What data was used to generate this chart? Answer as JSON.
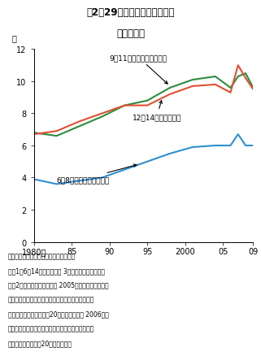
{
  "title_line1": "図2－29　肥満傾向の子どもの",
  "title_line2": "割合の推移",
  "title_bg_color": "#f2c0c0",
  "ylabel": "％",
  "ylim": [
    0,
    12
  ],
  "yticks": [
    0,
    2,
    4,
    6,
    8,
    10,
    12
  ],
  "xlim": [
    1980,
    2009
  ],
  "xticks": [
    1980,
    1985,
    1990,
    1995,
    2000,
    2005,
    2009
  ],
  "xticklabels": [
    "1980年",
    "85",
    "90",
    "95",
    "2000",
    "05",
    "09"
  ],
  "years": [
    1980,
    1983,
    1986,
    1989,
    1992,
    1995,
    1998,
    2001,
    2004,
    2006,
    2007,
    2008,
    2009
  ],
  "series_green": [
    6.8,
    6.6,
    7.2,
    7.8,
    8.5,
    8.8,
    9.6,
    10.1,
    10.3,
    9.6,
    10.3,
    10.5,
    9.6
  ],
  "series_orange": [
    6.7,
    6.9,
    7.5,
    8.0,
    8.5,
    8.5,
    9.2,
    9.7,
    9.8,
    9.3,
    11.0,
    10.2,
    9.5
  ],
  "series_blue": [
    3.9,
    3.6,
    3.8,
    4.0,
    4.5,
    5.0,
    5.5,
    5.9,
    6.0,
    6.0,
    6.7,
    6.0,
    6.0
  ],
  "color_green": "#2e8b3e",
  "color_orange": "#e05030",
  "color_blue": "#3090d0",
  "lw": 1.5,
  "label_9_11": "9～11歳（小学校高学年）",
  "label_12_14": "12～14歳（中学校）",
  "label_6_8": "6～8歳（小学校低学年）",
  "note_source": "資料：文部科学省「学校保健統計調査」",
  "note1": "注：1）6～14歳について、 3歳ごとに平均値を算出",
  "note2": "　　2）肥満傾向の基準は、 2005年までは性別・年齢",
  "note3": "　　　別に身長別平均体重を求め、その平均体重に",
  "note4": "　　　対して実測体重が20％以上の場合。 2006年か",
  "note5": "　　　らは性別・年齢別・身長別の標準体重に対し",
  "note6": "　　　て実測体重が20％以上の場合"
}
